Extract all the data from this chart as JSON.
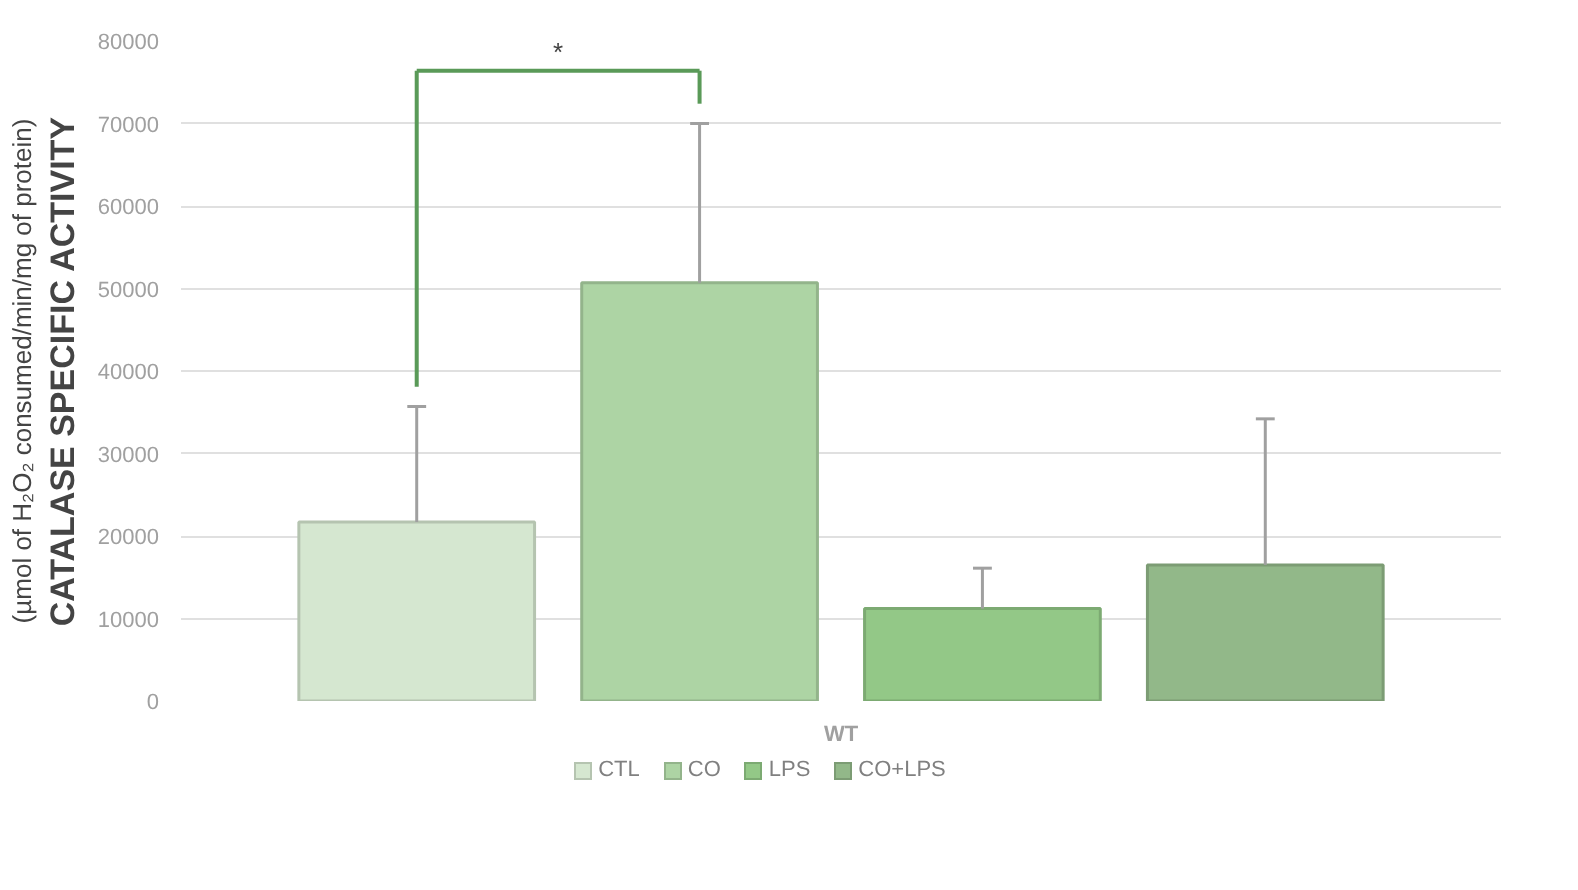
{
  "chart_data": {
    "type": "bar",
    "categories": [
      "WT"
    ],
    "ylabel": "CATALASE SPECIFIC ACTIVITY\n(µmol of H₂O₂ consumed/min/mg of protein)",
    "series": [
      {
        "name": "CTL",
        "color": "#d5e7d0",
        "values": [
          21700
        ],
        "errors": [
          [
            21700,
            35700
          ]
        ]
      },
      {
        "name": "CO",
        "color": "#add4a4",
        "values": [
          50700
        ],
        "errors": [
          [
            50700,
            70000
          ]
        ]
      },
      {
        "name": "LPS",
        "color": "#93c887",
        "values": [
          11200
        ],
        "errors": [
          [
            11200,
            16100
          ]
        ]
      },
      {
        "name": "CO+LPS",
        "color": "#92b889",
        "values": [
          16500
        ],
        "errors": [
          [
            16500,
            34200
          ]
        ]
      }
    ],
    "ylim": [
      0,
      80000
    ],
    "yticks": [
      0,
      10000,
      20000,
      30000,
      40000,
      50000,
      60000,
      70000,
      80000
    ],
    "grid": "y",
    "legend": "bottom",
    "annotations": [
      "*"
    ]
  }
}
